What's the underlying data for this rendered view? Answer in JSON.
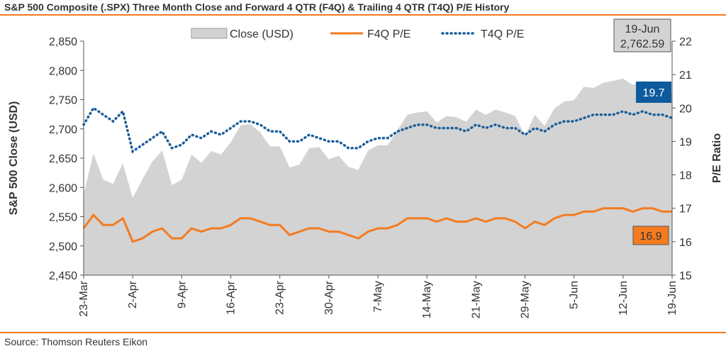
{
  "title": "S&P 500 Composite (.SPX) Three Month Close and Forward 4 QTR (F4Q) & Trailing 4 QTR (T4Q) P/E History",
  "source": "Source: Thomson Reuters Eikon",
  "colors": {
    "accent": "#f47b20",
    "close_fill": "#d3d3d3",
    "f4q": "#f47b20",
    "t4q": "#1a5e9a",
    "t4q_box": "#0e5a9e"
  },
  "chart_data": {
    "type": "area",
    "ylabel": "S&P 500 Close (USD)",
    "y2label": "P/E Ratio",
    "ylim": [
      2450,
      2850
    ],
    "y2lim": [
      15,
      22
    ],
    "yticks": [
      "2,450",
      "2,500",
      "2,550",
      "2,600",
      "2,650",
      "2,700",
      "2,750",
      "2,800",
      "2,850"
    ],
    "y2ticks": [
      "15",
      "16",
      "17",
      "18",
      "19",
      "20",
      "21",
      "22"
    ],
    "xticks": [
      "23-Mar",
      "2-Apr",
      "9-Apr",
      "16-Apr",
      "23-Apr",
      "30-Apr",
      "7-May",
      "14-May",
      "21-May",
      "29-May",
      "5-Jun",
      "12-Jun",
      "19-Jun"
    ],
    "grid": false,
    "legend": {
      "position": "top",
      "labels": [
        "Close (USD)",
        "F4Q P/E",
        "T4Q P/E"
      ]
    },
    "date_label": "19-Jun",
    "date_value": "2,762.59",
    "last_t4q": "19.7",
    "last_f4q": "16.9",
    "series": [
      {
        "name": "Close (USD)",
        "axis": "left",
        "style": "area",
        "values": [
          2588,
          2658,
          2613,
          2606,
          2641,
          2582,
          2614,
          2644,
          2663,
          2604,
          2613,
          2656,
          2642,
          2662,
          2656,
          2677,
          2706,
          2708,
          2694,
          2670,
          2670,
          2634,
          2639,
          2667,
          2669,
          2648,
          2654,
          2635,
          2630,
          2663,
          2672,
          2672,
          2698,
          2724,
          2728,
          2730,
          2711,
          2722,
          2720,
          2712,
          2733,
          2724,
          2733,
          2728,
          2722,
          2689,
          2724,
          2705,
          2735,
          2747,
          2749,
          2772,
          2770,
          2779,
          2782,
          2786,
          2775,
          2782,
          2779,
          2774,
          2762
        ]
      },
      {
        "name": "F4Q P/E",
        "axis": "right",
        "values": [
          16.4,
          16.8,
          16.5,
          16.5,
          16.7,
          16.0,
          16.1,
          16.3,
          16.4,
          16.1,
          16.1,
          16.4,
          16.3,
          16.4,
          16.4,
          16.5,
          16.7,
          16.7,
          16.6,
          16.5,
          16.5,
          16.2,
          16.3,
          16.4,
          16.4,
          16.3,
          16.3,
          16.2,
          16.1,
          16.3,
          16.4,
          16.4,
          16.5,
          16.7,
          16.7,
          16.7,
          16.6,
          16.7,
          16.6,
          16.6,
          16.7,
          16.6,
          16.7,
          16.7,
          16.6,
          16.4,
          16.6,
          16.5,
          16.7,
          16.8,
          16.8,
          16.9,
          16.9,
          17.0,
          17.0,
          17.0,
          16.9,
          17.0,
          17.0,
          16.9,
          16.9
        ]
      },
      {
        "name": "T4Q P/E",
        "axis": "right",
        "values": [
          19.5,
          20.0,
          19.8,
          19.6,
          19.9,
          18.7,
          18.9,
          19.1,
          19.3,
          18.8,
          18.9,
          19.2,
          19.1,
          19.3,
          19.2,
          19.4,
          19.6,
          19.6,
          19.5,
          19.3,
          19.3,
          19.0,
          19.0,
          19.2,
          19.1,
          19.0,
          19.0,
          18.8,
          18.8,
          19.0,
          19.1,
          19.1,
          19.3,
          19.4,
          19.5,
          19.5,
          19.4,
          19.4,
          19.4,
          19.3,
          19.5,
          19.4,
          19.5,
          19.4,
          19.4,
          19.2,
          19.4,
          19.3,
          19.5,
          19.6,
          19.6,
          19.7,
          19.8,
          19.8,
          19.8,
          19.9,
          19.8,
          19.9,
          19.8,
          19.8,
          19.7
        ]
      }
    ]
  }
}
